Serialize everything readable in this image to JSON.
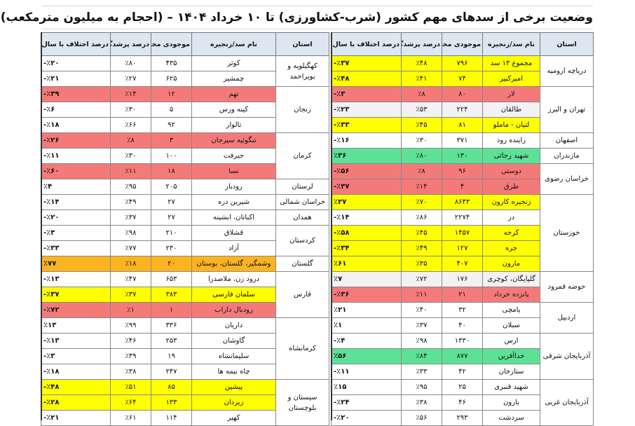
{
  "title": "وضعیت برخی از سدهای مهم کشور (شرب-کشاورزی)  تا ۱۰ خرداد ۱۴۰۴  –  (احجام به میلیون مترمکعب)",
  "headers": {
    "province": "استان",
    "dam": "نام سد/زنجیره",
    "storage": "موجودی مخزن",
    "fill": "درصد پرشدگی",
    "change": "درصد اختلاف با سال قبل"
  },
  "right_rows": [
    {
      "province": "دریاچه ارومیه",
      "span": 2,
      "dam": "مجموع ۱۳ سد",
      "storage": "۷۹۶",
      "fill": "٪۴۸",
      "change": "٪۳۷-",
      "status": "yellow"
    },
    {
      "dam": "امیرکبیر",
      "storage": "۷۴",
      "fill": "٪۴۱",
      "change": "٪۴۸-",
      "status": "yellow"
    },
    {
      "province": "تهران و البرز",
      "span": 4,
      "dam": "لار",
      "storage": "۸۰",
      "fill": "٪۸",
      "change": "٪۳-",
      "status": "red"
    },
    {
      "dam": "طالقان",
      "storage": "۲۲۴",
      "fill": "٪۵۳",
      "change": "٪۲۳-",
      "status": "gray"
    },
    {
      "dam": "لتیان - ماملو",
      "storage": "۸۱",
      "fill": "٪۴۵",
      "change": "٪۳۳-",
      "status": "yellow"
    },
    {
      "dam": "زاینده رود",
      "storage": "۳۷۱",
      "fill": "٪۳۰",
      "change": "٪۱۶-",
      "status": "white"
    },
    {
      "province": "اصفهان",
      "span": 0
    },
    {
      "province": "مازندران",
      "span": 1,
      "dam": "شهید رجائی",
      "storage": "۱۳۰",
      "fill": "٪۸۰",
      "change": "٪۳۶",
      "status": "green"
    },
    {
      "province": "خراسان رضوی",
      "span": 2,
      "dam": "دوستی",
      "storage": "۹۶",
      "fill": "٪۸",
      "change": "٪۵۶-",
      "status": "red"
    },
    {
      "dam": "طرق",
      "storage": "۴",
      "fill": "٪۱۴",
      "change": "٪۳۷-",
      "status": "red"
    },
    {
      "province": "خوزستان",
      "span": 5,
      "dam": "زنجیره کارون",
      "storage": "۸۶۴۳",
      "fill": "٪۷۰",
      "change": "٪۲۷",
      "status": "yellow"
    },
    {
      "dam": "دز",
      "storage": "۲۲۷۴",
      "fill": "٪۸۶",
      "change": "٪۱۴-",
      "status": "white"
    },
    {
      "dam": "کرخه",
      "storage": "۱۴۵۷",
      "fill": "٪۴۵",
      "change": "٪۵۸-",
      "status": "yellow"
    },
    {
      "dam": "جره",
      "storage": "۱۲۷",
      "fill": "٪۴۹",
      "change": "٪۳۴-",
      "status": "yellow"
    },
    {
      "dam": "مارون",
      "storage": "۴۰۷",
      "fill": "٪۳۵",
      "change": "٪۶۱",
      "status": "yellow"
    },
    {
      "province": "حوضه قمرود",
      "span": 2,
      "dam": "گلپایگان، کوچری",
      "storage": "۱۷۶",
      "fill": "٪۷۲",
      "change": "٪۷",
      "status": "gray"
    },
    {
      "dam": "پانزده خرداد",
      "storage": "۲۱",
      "fill": "٪۱۱",
      "change": "٪۳۶-",
      "status": "red"
    },
    {
      "province": "اردبیل",
      "span": 2,
      "dam": "یامچی",
      "storage": "۳۲",
      "fill": "٪۴۰",
      "change": "٪۲۱",
      "status": "white"
    },
    {
      "dam": "سبلان",
      "storage": "۴۰",
      "fill": "٪۳۷",
      "change": "٪۱",
      "status": "white"
    },
    {
      "province": "آذربایجان شرقی",
      "span": 3,
      "dam": "ارس",
      "storage": "۱۳۳۰",
      "fill": "٪۹۸",
      "change": "٪۴-",
      "status": "white"
    },
    {
      "dam": "خداآفرین",
      "storage": "۸۷۷",
      "fill": "٪۸۴",
      "change": "٪۵۶",
      "status": "green"
    },
    {
      "dam": "ستارخان",
      "storage": "۴۲",
      "fill": "٪۳۳",
      "change": "٪۱۱-",
      "status": "white"
    },
    {
      "province": "آذربایجان غربی",
      "span": 3,
      "dam": "شهید قنبری",
      "storage": "۲۵",
      "fill": "٪۹۵",
      "change": "٪۱۵",
      "status": "white"
    },
    {
      "dam": "بارون",
      "storage": "۴۶",
      "fill": "٪۳۸",
      "change": "٪۲۴-",
      "status": "white"
    },
    {
      "dam": "سردشت",
      "storage": "۲۹۳",
      "fill": "٪۵۶",
      "change": "٪۲۰-",
      "status": "white"
    }
  ],
  "left_rows": [
    {
      "province": "کهگیلویه و بویراحمد",
      "span": 2,
      "dam": "کوثر",
      "storage": "۴۳۵",
      "fill": "٪۸۰",
      "change": "٪۲۰-",
      "status": "white"
    },
    {
      "dam": "چمشیر",
      "storage": "۶۲۵",
      "fill": "٪۲۷",
      "change": "٪۲۱-",
      "status": "white"
    },
    {
      "province": "زنجان",
      "span": 3,
      "dam": "تهم",
      "storage": "۱۲",
      "fill": "٪۱۴",
      "change": "٪۳۹-",
      "status": "red"
    },
    {
      "dam": "کینه ورس",
      "storage": "۵",
      "fill": "٪۳۰",
      "change": "٪۶-",
      "status": "white"
    },
    {
      "dam": "تالوار",
      "storage": "۹۲",
      "fill": "٪۶۶",
      "change": "٪۱۸-",
      "status": "white"
    },
    {
      "province": "کرمان",
      "span": 3,
      "dam": "تنگوئیه سیرجان",
      "storage": "۳",
      "fill": "٪۸",
      "change": "٪۲۶-",
      "status": "red"
    },
    {
      "dam": "جیرفت",
      "storage": "۱۰۰",
      "fill": "٪۳۰",
      "change": "٪۱۱-",
      "status": "white"
    },
    {
      "dam": "نسا",
      "storage": "۱۸",
      "fill": "٪۱۱",
      "change": "٪۶۰-",
      "status": "red"
    },
    {
      "province": "لرستان",
      "span": 1,
      "dam": "رودبار",
      "storage": "۲۰۵",
      "fill": "٪۹۵",
      "change": "٪۴",
      "status": "white"
    },
    {
      "province": "خراسان شمالی",
      "span": 1,
      "dam": "شیرین دره",
      "storage": "۲۷",
      "fill": "٪۴۹",
      "change": "٪۱۴-",
      "status": "white"
    },
    {
      "province": "همدان",
      "span": 1,
      "dam": "اکباتان، ابشینه",
      "storage": "۲۷",
      "fill": "٪۳۷",
      "change": "٪۲۰-",
      "status": "white"
    },
    {
      "province": "کردستان",
      "span": 2,
      "dam": "قشلاق",
      "storage": "۲۱۰",
      "fill": "٪۹۸",
      "change": "٪۳-",
      "status": "white"
    },
    {
      "dam": "آزاد",
      "storage": "۲۳۰",
      "fill": "٪۷۷",
      "change": "٪۳۳-",
      "status": "white"
    },
    {
      "province": "گلستان",
      "span": 1,
      "dam": "وشمگیر، گلستان، بوستان",
      "storage": "۲۰",
      "fill": "٪۱۸",
      "change": "٪۷۷",
      "status": "orange"
    },
    {
      "province": "فارس",
      "span": 3,
      "dam": "درود زن، ملاصدرا",
      "storage": "۶۵۳",
      "fill": "٪۴۷",
      "change": "٪۱۳-",
      "status": "white"
    },
    {
      "dam": "سلمان فارسی",
      "storage": "۳۸۳",
      "fill": "٪۳۷",
      "change": "٪۳۷-",
      "status": "yellow"
    },
    {
      "dam": "رودبال داراب",
      "storage": "۱",
      "fill": "٪۱",
      "change": "٪۷۲-",
      "status": "red"
    },
    {
      "province": "کرمانشاه",
      "span": 4,
      "dam": "داریان",
      "storage": "۳۳۶",
      "fill": "٪۹۹",
      "change": "٪۱۳",
      "status": "white"
    },
    {
      "dam": "گاوشان",
      "storage": "۲۵۳",
      "fill": "٪۴۶",
      "change": "٪۱۳-",
      "status": "white"
    },
    {
      "dam": "سلیمانشاه",
      "storage": "۱۹",
      "fill": "٪۳۹",
      "change": "٪۳-",
      "status": "white"
    },
    {
      "dam": "چاه نیمه ها",
      "storage": "۲۴۷",
      "fill": "٪۳۸",
      "change": "٪۱۸-",
      "status": "white"
    },
    {
      "province": "سیستان و بلوچستان",
      "span": 4,
      "dam": "پیشین",
      "storage": "۸۵",
      "fill": "٪۵۱",
      "change": "٪۴۸-",
      "status": "yellow"
    },
    {
      "dam": "زیردان",
      "storage": "۱۳۳",
      "fill": "٪۶۴",
      "change": "٪۲۸-",
      "status": "yellow"
    },
    {
      "dam": "کهیر",
      "storage": "۱۱۴",
      "fill": "٪۶۱",
      "change": "٪۲۱-",
      "status": "white"
    }
  ]
}
